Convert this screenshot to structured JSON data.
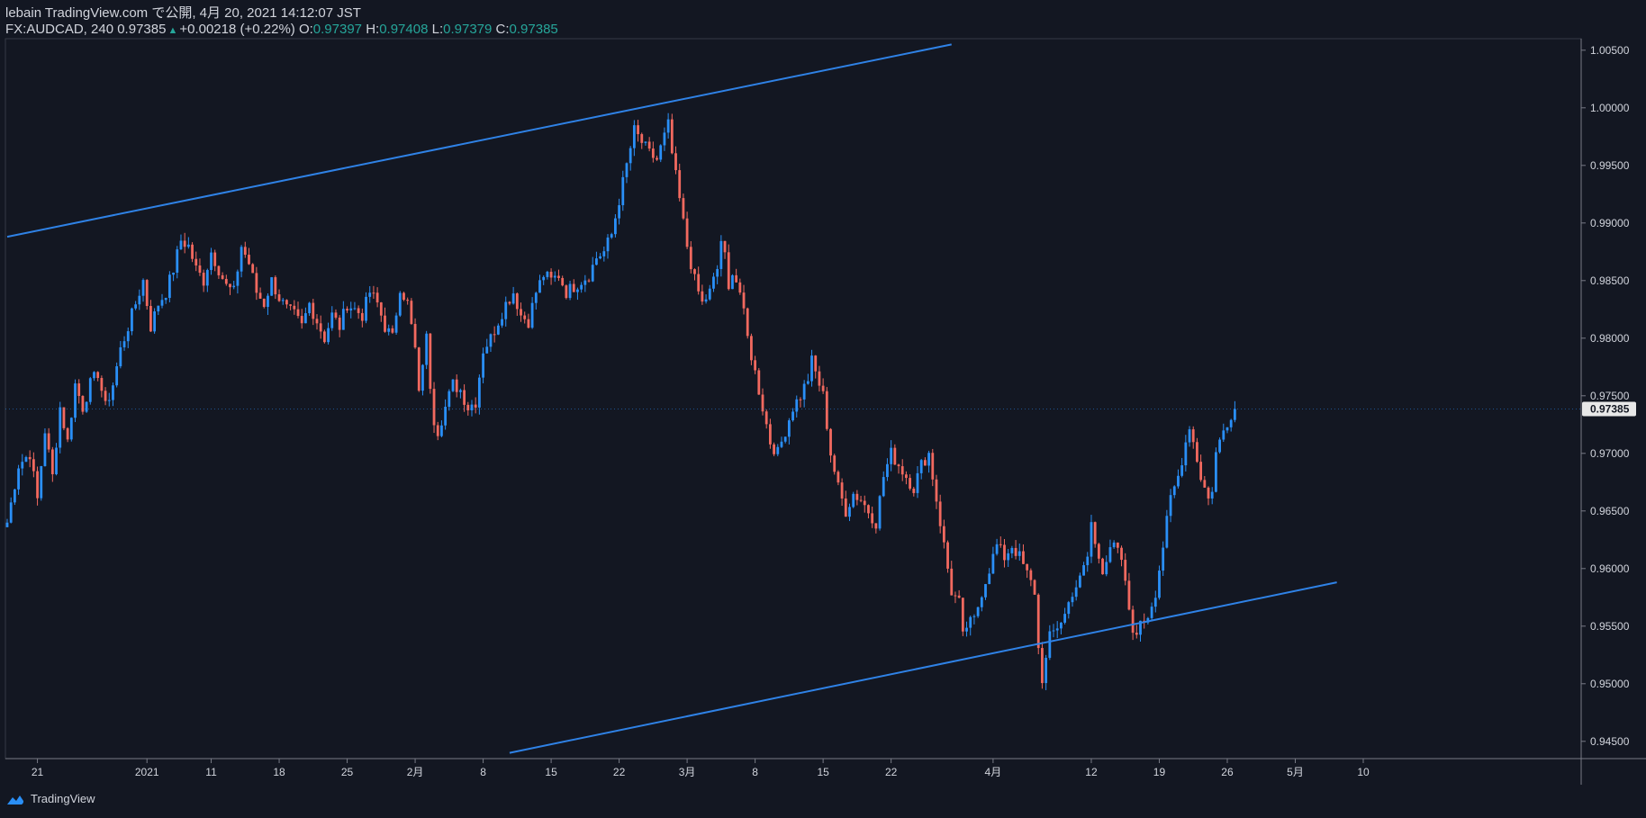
{
  "header": {
    "line1": "lebain TradingView.com で公開, 4月 20, 2021 14:12:07 JST",
    "symbol": "FX:AUDCAD, 240",
    "last": "0.97385",
    "change": "+0.00218 (+0.22%)",
    "o_label": "O:",
    "o": "0.97397",
    "h_label": "H:",
    "h": "0.97408",
    "l_label": "L:",
    "l": "0.97379",
    "c_label": "C:",
    "c": "0.97385"
  },
  "footer": {
    "brand": "TradingView"
  },
  "colors": {
    "background": "#131722",
    "up": "#2a8ff7",
    "down": "#f2695f",
    "trendline": "#2f82e6",
    "grid": "#363a45",
    "text": "#d1d4dc",
    "teal": "#26a69a"
  },
  "chart_data": {
    "type": "candlestick",
    "symbol": "FX:AUDCAD",
    "interval": "240",
    "ylim": [
      0.9435,
      1.006
    ],
    "y_ticks": [
      "0.94500",
      "0.95000",
      "0.95500",
      "0.96000",
      "0.96500",
      "0.97000",
      "0.97500",
      "0.98000",
      "0.98500",
      "0.99000",
      "0.99500",
      "1.00000",
      "1.00500"
    ],
    "current_price": "0.97385",
    "x_ticks": [
      {
        "label": "21",
        "i": 8
      },
      {
        "label": "2021",
        "i": 37
      },
      {
        "label": "11",
        "i": 54
      },
      {
        "label": "18",
        "i": 72
      },
      {
        "label": "25",
        "i": 90
      },
      {
        "label": "2月",
        "i": 108
      },
      {
        "label": "8",
        "i": 126
      },
      {
        "label": "15",
        "i": 144
      },
      {
        "label": "22",
        "i": 162
      },
      {
        "label": "3月",
        "i": 180
      },
      {
        "label": "8",
        "i": 198
      },
      {
        "label": "15",
        "i": 216
      },
      {
        "label": "22",
        "i": 234
      },
      {
        "label": "4月",
        "i": 261
      },
      {
        "label": "12",
        "i": 287
      },
      {
        "label": "19",
        "i": 305
      },
      {
        "label": "26",
        "i": 323
      },
      {
        "label": "5月",
        "i": 341
      },
      {
        "label": "10",
        "i": 359
      }
    ],
    "close_path": [
      [
        0,
        0.964
      ],
      [
        3,
        0.969
      ],
      [
        6,
        0.97
      ],
      [
        8,
        0.966
      ],
      [
        10,
        0.972
      ],
      [
        12,
        0.968
      ],
      [
        14,
        0.974
      ],
      [
        16,
        0.971
      ],
      [
        18,
        0.976
      ],
      [
        20,
        0.974
      ],
      [
        22,
        0.976
      ],
      [
        24,
        0.977
      ],
      [
        26,
        0.974
      ],
      [
        28,
        0.976
      ],
      [
        30,
        0.979
      ],
      [
        32,
        0.981
      ],
      [
        34,
        0.983
      ],
      [
        36,
        0.985
      ],
      [
        38,
        0.981
      ],
      [
        40,
        0.983
      ],
      [
        42,
        0.984
      ],
      [
        44,
        0.986
      ],
      [
        46,
        0.9885
      ],
      [
        48,
        0.988
      ],
      [
        50,
        0.986
      ],
      [
        52,
        0.985
      ],
      [
        54,
        0.9875
      ],
      [
        56,
        0.986
      ],
      [
        58,
        0.9845
      ],
      [
        60,
        0.984
      ],
      [
        62,
        0.988
      ],
      [
        64,
        0.9865
      ],
      [
        66,
        0.984
      ],
      [
        68,
        0.983
      ],
      [
        70,
        0.985
      ],
      [
        72,
        0.9835
      ],
      [
        74,
        0.9825
      ],
      [
        76,
        0.982
      ],
      [
        78,
        0.981
      ],
      [
        80,
        0.983
      ],
      [
        82,
        0.9815
      ],
      [
        84,
        0.98
      ],
      [
        86,
        0.982
      ],
      [
        88,
        0.981
      ],
      [
        90,
        0.983
      ],
      [
        92,
        0.9825
      ],
      [
        94,
        0.982
      ],
      [
        96,
        0.984
      ],
      [
        98,
        0.983
      ],
      [
        100,
        0.981
      ],
      [
        102,
        0.98
      ],
      [
        104,
        0.9845
      ],
      [
        106,
        0.983
      ],
      [
        108,
        0.979
      ],
      [
        109,
        0.975
      ],
      [
        110,
        0.978
      ],
      [
        111,
        0.98
      ],
      [
        112,
        0.976
      ],
      [
        113,
        0.973
      ],
      [
        114,
        0.972
      ],
      [
        116,
        0.974
      ],
      [
        118,
        0.976
      ],
      [
        120,
        0.9755
      ],
      [
        122,
        0.974
      ],
      [
        124,
        0.9745
      ],
      [
        126,
        0.979
      ],
      [
        128,
        0.98
      ],
      [
        130,
        0.9815
      ],
      [
        132,
        0.983
      ],
      [
        134,
        0.984
      ],
      [
        136,
        0.982
      ],
      [
        138,
        0.9815
      ],
      [
        140,
        0.984
      ],
      [
        142,
        0.9855
      ],
      [
        144,
        0.985
      ],
      [
        146,
        0.9855
      ],
      [
        148,
        0.984
      ],
      [
        150,
        0.9845
      ],
      [
        152,
        0.985
      ],
      [
        154,
        0.9855
      ],
      [
        156,
        0.987
      ],
      [
        158,
        0.9875
      ],
      [
        160,
        0.989
      ],
      [
        162,
        0.992
      ],
      [
        164,
        0.995
      ],
      [
        166,
        0.998
      ],
      [
        168,
        0.997
      ],
      [
        170,
        0.996
      ],
      [
        172,
        0.9955
      ],
      [
        174,
        0.9975
      ],
      [
        175,
        0.9985
      ],
      [
        176,
        0.996
      ],
      [
        178,
        0.992
      ],
      [
        180,
        0.988
      ],
      [
        182,
        0.985
      ],
      [
        184,
        0.983
      ],
      [
        186,
        0.984
      ],
      [
        188,
        0.986
      ],
      [
        189,
        0.9885
      ],
      [
        190,
        0.987
      ],
      [
        191,
        0.984
      ],
      [
        192,
        0.986
      ],
      [
        194,
        0.984
      ],
      [
        196,
        0.98
      ],
      [
        198,
        0.977
      ],
      [
        200,
        0.974
      ],
      [
        202,
        0.971
      ],
      [
        204,
        0.97
      ],
      [
        206,
        0.972
      ],
      [
        208,
        0.974
      ],
      [
        210,
        0.975
      ],
      [
        212,
        0.9765
      ],
      [
        213,
        0.978
      ],
      [
        214,
        0.977
      ],
      [
        216,
        0.975
      ],
      [
        218,
        0.97
      ],
      [
        220,
        0.967
      ],
      [
        222,
        0.965
      ],
      [
        224,
        0.9665
      ],
      [
        226,
        0.966
      ],
      [
        228,
        0.965
      ],
      [
        230,
        0.964
      ],
      [
        232,
        0.968
      ],
      [
        234,
        0.97
      ],
      [
        236,
        0.969
      ],
      [
        238,
        0.968
      ],
      [
        240,
        0.967
      ],
      [
        242,
        0.969
      ],
      [
        244,
        0.97
      ],
      [
        246,
        0.966
      ],
      [
        248,
        0.962
      ],
      [
        250,
        0.958
      ],
      [
        252,
        0.957
      ],
      [
        253,
        0.954
      ],
      [
        254,
        0.955
      ],
      [
        256,
        0.9555
      ],
      [
        258,
        0.958
      ],
      [
        260,
        0.96
      ],
      [
        262,
        0.962
      ],
      [
        264,
        0.961
      ],
      [
        266,
        0.962
      ],
      [
        268,
        0.961
      ],
      [
        270,
        0.9595
      ],
      [
        272,
        0.958
      ],
      [
        273,
        0.953
      ],
      [
        274,
        0.9505
      ],
      [
        275,
        0.952
      ],
      [
        276,
        0.954
      ],
      [
        278,
        0.955
      ],
      [
        280,
        0.956
      ],
      [
        282,
        0.958
      ],
      [
        284,
        0.959
      ],
      [
        286,
        0.961
      ],
      [
        287,
        0.964
      ],
      [
        288,
        0.962
      ],
      [
        290,
        0.96
      ],
      [
        292,
        0.962
      ],
      [
        294,
        0.9615
      ],
      [
        296,
        0.959
      ],
      [
        297,
        0.956
      ],
      [
        298,
        0.9545
      ],
      [
        300,
        0.955
      ],
      [
        302,
        0.956
      ],
      [
        304,
        0.958
      ],
      [
        306,
        0.962
      ],
      [
        308,
        0.966
      ],
      [
        310,
        0.968
      ],
      [
        312,
        0.971
      ],
      [
        313,
        0.9725
      ],
      [
        314,
        0.971
      ],
      [
        316,
        0.968
      ],
      [
        318,
        0.966
      ],
      [
        319,
        0.967
      ],
      [
        320,
        0.97
      ],
      [
        322,
        0.972
      ],
      [
        324,
        0.9735
      ],
      [
        325,
        0.97385
      ]
    ],
    "trendlines": [
      {
        "name": "upper-channel",
        "p1": [
          0,
          0.9888
        ],
        "p2": [
          250,
          1.0055
        ]
      },
      {
        "name": "lower-channel",
        "p1": [
          133,
          0.944
        ],
        "p2": [
          352,
          0.9588
        ]
      }
    ]
  }
}
